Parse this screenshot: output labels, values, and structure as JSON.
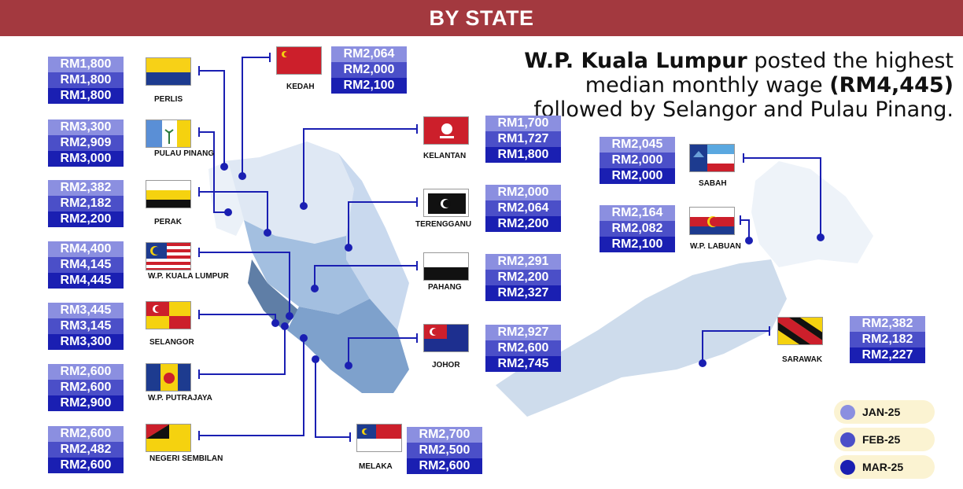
{
  "banner": {
    "title": "BY STATE"
  },
  "headline": {
    "bold1": "W.P. Kuala Lumpur",
    "text1": " posted the highest median monthly wage ",
    "bold2": "(RM4,445)",
    "text2": " followed by Selangor and Pulau Pinang."
  },
  "colors": {
    "banner": "#a3393f",
    "jan": "#8b8fe0",
    "feb": "#4b4fc8",
    "mar": "#1a1fb2",
    "connector": "#1a1fb2",
    "legend_bg": "#fbf3d2"
  },
  "chart_data": {
    "type": "table",
    "title": "BY STATE",
    "months": [
      "JAN-25",
      "FEB-25",
      "MAR-25"
    ],
    "states": [
      {
        "name": "PERLIS",
        "values": [
          "RM1,800",
          "RM1,800",
          "RM1,800"
        ],
        "flag": "perlis-flag-icon"
      },
      {
        "name": "PULAU PINANG",
        "values": [
          "RM3,300",
          "RM2,909",
          "RM3,000"
        ],
        "flag": "pulau-pinang-flag-icon"
      },
      {
        "name": "PERAK",
        "values": [
          "RM2,382",
          "RM2,182",
          "RM2,200"
        ],
        "flag": "perak-flag-icon"
      },
      {
        "name": "W.P. KUALA LUMPUR",
        "values": [
          "RM4,400",
          "RM4,145",
          "RM4,445"
        ],
        "flag": "kuala-lumpur-flag-icon"
      },
      {
        "name": "SELANGOR",
        "values": [
          "RM3,445",
          "RM3,145",
          "RM3,300"
        ],
        "flag": "selangor-flag-icon"
      },
      {
        "name": "W.P. PUTRAJAYA",
        "values": [
          "RM2,600",
          "RM2,600",
          "RM2,900"
        ],
        "flag": "putrajaya-flag-icon"
      },
      {
        "name": "NEGERI SEMBILAN",
        "values": [
          "RM2,600",
          "RM2,482",
          "RM2,600"
        ],
        "flag": "negeri-sembilan-flag-icon"
      },
      {
        "name": "KEDAH",
        "values": [
          "RM2,064",
          "RM2,000",
          "RM2,100"
        ],
        "flag": "kedah-flag-icon"
      },
      {
        "name": "KELANTAN",
        "values": [
          "RM1,700",
          "RM1,727",
          "RM1,800"
        ],
        "flag": "kelantan-flag-icon"
      },
      {
        "name": "TERENGGANU",
        "values": [
          "RM2,000",
          "RM2,064",
          "RM2,200"
        ],
        "flag": "terengganu-flag-icon"
      },
      {
        "name": "PAHANG",
        "values": [
          "RM2,291",
          "RM2,200",
          "RM2,327"
        ],
        "flag": "pahang-flag-icon"
      },
      {
        "name": "JOHOR",
        "values": [
          "RM2,927",
          "RM2,600",
          "RM2,745"
        ],
        "flag": "johor-flag-icon"
      },
      {
        "name": "MELAKA",
        "values": [
          "RM2,700",
          "RM2,500",
          "RM2,600"
        ],
        "flag": "melaka-flag-icon"
      },
      {
        "name": "SABAH",
        "values": [
          "RM2,045",
          "RM2,000",
          "RM2,000"
        ],
        "flag": "sabah-flag-icon"
      },
      {
        "name": "W.P. LABUAN",
        "values": [
          "RM2,164",
          "RM2,082",
          "RM2,100"
        ],
        "flag": "labuan-flag-icon"
      },
      {
        "name": "SARAWAK",
        "values": [
          "RM2,382",
          "RM2,182",
          "RM2,227"
        ],
        "flag": "sarawak-flag-icon"
      }
    ]
  }
}
